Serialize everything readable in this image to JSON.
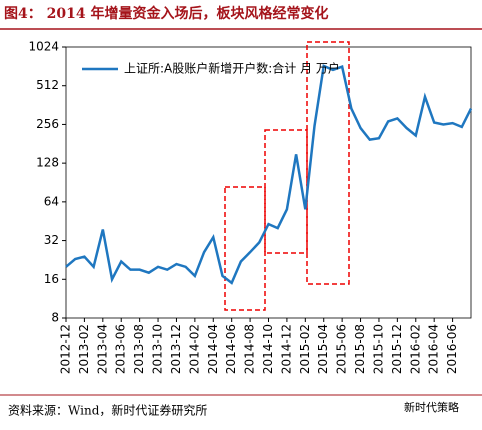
{
  "chart_data": {
    "type": "line",
    "title": "图4： 2014 年增量资金入场后，板块风格经常变化",
    "source": "资料来源：Wind，新时代证券研究所",
    "watermark": "新时代策略",
    "log_scale": true,
    "ylim": [
      8,
      1024
    ],
    "yticks": [
      8,
      16,
      32,
      64,
      128,
      256,
      512,
      1024
    ],
    "legend": "top-left",
    "categories": [
      "2012-12",
      null,
      "2013-02",
      null,
      "2013-04",
      null,
      "2013-06",
      null,
      "2013-08",
      null,
      "2013-10",
      null,
      "2013-12",
      null,
      "2014-02",
      null,
      "2014-04",
      null,
      "2014-06",
      null,
      "2014-08",
      null,
      "2014-10",
      null,
      "2014-12",
      null,
      "2015-02",
      null,
      "2015-04",
      null,
      "2015-06",
      null,
      "2015-08",
      null,
      "2015-10",
      null,
      "2015-12",
      null,
      "2016-02",
      null,
      "2016-04",
      null,
      "2016-06",
      null,
      null
    ],
    "series": [
      {
        "name": "上证所:A股账户新增开户数:合计  月  万户",
        "color": "#1f77c0",
        "values": [
          20,
          23,
          24,
          20,
          39,
          16,
          22,
          19,
          19,
          18,
          20,
          19,
          21,
          20,
          17,
          26,
          34,
          17,
          15,
          22,
          26,
          31,
          43,
          40,
          56,
          150,
          56,
          250,
          730,
          680,
          720,
          340,
          240,
          195,
          200,
          270,
          285,
          240,
          210,
          420,
          265,
          256,
          262,
          245,
          340
        ]
      }
    ]
  }
}
